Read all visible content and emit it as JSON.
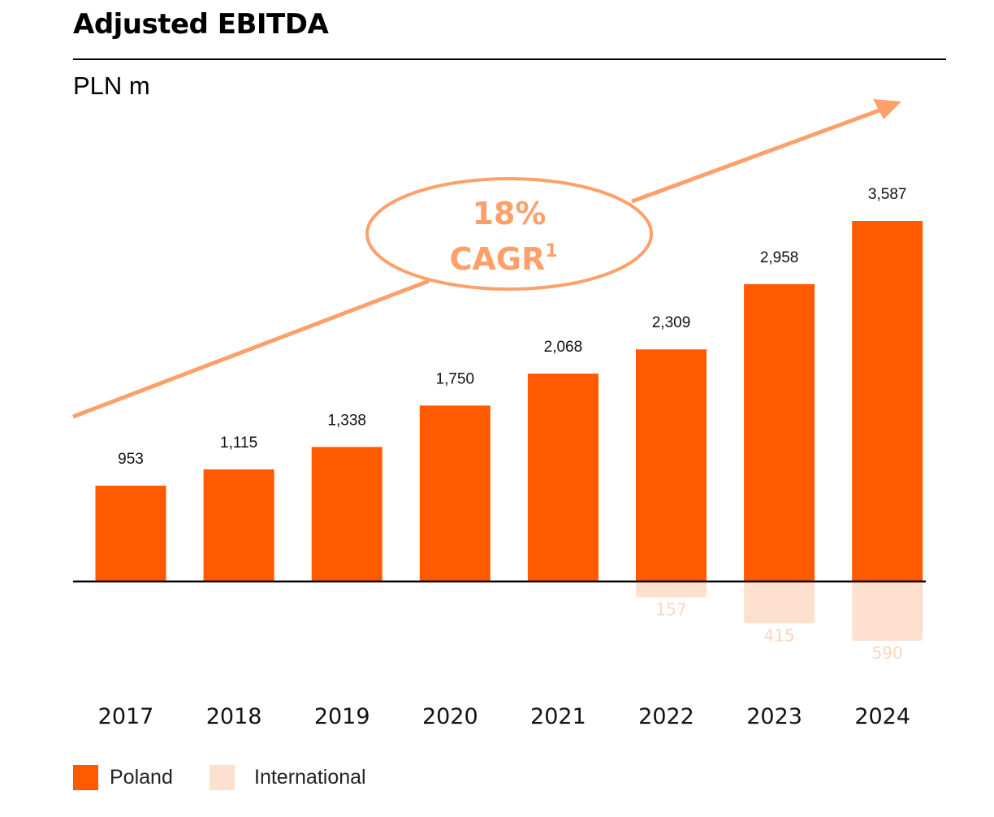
{
  "title": "Adjusted EBITDA",
  "unit": "PLN m",
  "annotation": {
    "cagr_value": "18%",
    "cagr_label": "CAGR",
    "footnote": "1"
  },
  "colors": {
    "poland": "#ff5a00",
    "international": "#fde0cd",
    "international_label": "#fcd6bd",
    "arrow": "#ffa06a"
  },
  "chart_data": {
    "type": "bar",
    "title": "Adjusted EBITDA",
    "ylabel": "PLN m",
    "categories": [
      "2017",
      "2018",
      "2019",
      "2020",
      "2021",
      "2022",
      "2023",
      "2024"
    ],
    "series": [
      {
        "name": "Poland",
        "values": [
          953,
          1115,
          1338,
          1750,
          2068,
          2309,
          2958,
          3587
        ],
        "labels": [
          "953",
          "1,115",
          "1,338",
          "1,750",
          "2,068",
          "2,309",
          "2,958",
          "3,587"
        ]
      },
      {
        "name": "International",
        "values": [
          null,
          null,
          null,
          null,
          null,
          157,
          415,
          590
        ],
        "labels": [
          "",
          "",
          "",
          "",
          "",
          "157",
          "415",
          "590"
        ],
        "direction": "below-axis"
      }
    ],
    "legend": {
      "position": "bottom-left",
      "entries": [
        "Poland",
        "International"
      ]
    },
    "grid": false
  }
}
